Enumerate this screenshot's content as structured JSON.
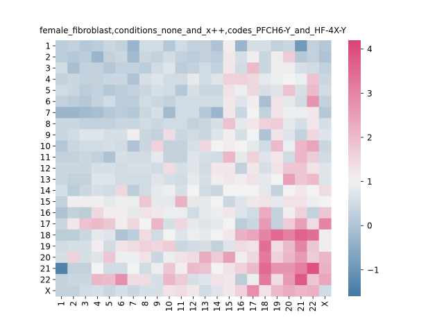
{
  "chart_data": {
    "type": "heatmap",
    "title": "female_fibroblast,conditions_none_and_x++,codes_PFCH6-Y_and_HF-4X-Y",
    "xlabel": "",
    "ylabel": "",
    "x_labels": [
      "1",
      "2",
      "3",
      "4",
      "5",
      "6",
      "7",
      "8",
      "9",
      "10",
      "11",
      "12",
      "13",
      "14",
      "15",
      "16",
      "17",
      "18",
      "19",
      "20",
      "21",
      "22",
      "X"
    ],
    "y_labels": [
      "1",
      "2",
      "3",
      "4",
      "5",
      "6",
      "7",
      "8",
      "9",
      "10",
      "11",
      "12",
      "13",
      "14",
      "15",
      "16",
      "17",
      "18",
      "19",
      "20",
      "21",
      "22",
      "X"
    ],
    "colorbar": {
      "min": -1.6,
      "max": 4.2,
      "ticks": [
        -1,
        0,
        1,
        2,
        3,
        4
      ],
      "colormap": "diverging blue-white-pink",
      "low_color": "#4379a5",
      "mid_color": "#f2f2f2",
      "high_color": "#dc4278"
    },
    "values": [
      [
        0.2,
        0.3,
        0.1,
        0.2,
        0.4,
        0.3,
        -0.3,
        0.5,
        0.5,
        0.1,
        0.5,
        0.3,
        0.3,
        0.0,
        1.1,
        -0.3,
        0.6,
        0.6,
        0.3,
        0.4,
        -0.9,
        0.3,
        0.1
      ],
      [
        0.2,
        0.1,
        0.2,
        -0.3,
        0.3,
        0.4,
        -0.2,
        0.4,
        0.3,
        0.5,
        0.3,
        0.2,
        0.3,
        0.2,
        1.2,
        0.6,
        1.1,
        0.4,
        0.9,
        1.7,
        0.1,
        0.3,
        0.0
      ],
      [
        0.5,
        -0.1,
        0.3,
        0.3,
        0.1,
        0.3,
        0.3,
        0.2,
        0.5,
        0.7,
        0.2,
        0.3,
        0.5,
        0.3,
        1.2,
        0.5,
        2.0,
        0.4,
        1.1,
        0.9,
        0.6,
        0.5,
        0.3
      ],
      [
        0.3,
        0.4,
        0.3,
        0.3,
        0.4,
        0.4,
        0.0,
        0.6,
        0.7,
        0.5,
        0.5,
        0.8,
        0.5,
        0.7,
        1.6,
        1.6,
        1.5,
        0.8,
        0.9,
        1.0,
        0.9,
        1.9,
        0.4
      ],
      [
        0.5,
        0.4,
        0.2,
        0.3,
        0.1,
        0.2,
        0.3,
        0.4,
        0.6,
        0.5,
        0.1,
        0.6,
        0.4,
        0.4,
        1.3,
        0.9,
        1.5,
        0.6,
        0.7,
        1.9,
        0.6,
        2.0,
        0.5
      ],
      [
        0.3,
        0.2,
        0.1,
        0.3,
        0.5,
        0.2,
        0.2,
        0.5,
        0.4,
        0.3,
        0.5,
        0.5,
        0.5,
        0.5,
        1.2,
        0.7,
        1.1,
        -0.1,
        1.3,
        0.8,
        0.5,
        2.7,
        0.3
      ],
      [
        -0.3,
        -0.3,
        -0.2,
        -0.1,
        0.1,
        0.2,
        0.1,
        0.4,
        0.6,
        -0.2,
        0.5,
        0.5,
        0.1,
        -0.3,
        1.2,
        0.4,
        1.0,
        0.3,
        1.3,
        0.9,
        0.9,
        1.2,
        0.1
      ],
      [
        0.4,
        0.4,
        0.3,
        0.3,
        0.3,
        0.4,
        0.4,
        0.5,
        0.4,
        0.5,
        0.5,
        0.3,
        0.4,
        0.6,
        1.9,
        0.8,
        1.2,
        1.6,
        1.7,
        0.8,
        0.6,
        1.2,
        0.6
      ],
      [
        0.4,
        0.5,
        0.7,
        0.7,
        0.6,
        0.6,
        1.1,
        0.4,
        0.3,
        1.4,
        0.4,
        0.5,
        0.4,
        0.7,
        1.1,
        0.6,
        1.0,
        0.0,
        1.3,
        0.7,
        0.3,
        1.5,
        0.7
      ],
      [
        0.1,
        0.4,
        0.5,
        0.5,
        0.6,
        0.5,
        0.0,
        0.4,
        1.6,
        0.3,
        0.3,
        0.6,
        1.5,
        1.0,
        1.1,
        1.0,
        0.8,
        0.5,
        2.0,
        0.9,
        2.1,
        2.4,
        0.4
      ],
      [
        0.3,
        0.3,
        0.4,
        0.3,
        0.0,
        0.6,
        0.5,
        0.5,
        0.8,
        0.3,
        0.3,
        0.7,
        0.6,
        0.5,
        2.1,
        0.8,
        1.6,
        0.7,
        1.2,
        0.5,
        2.1,
        1.7,
        0.5
      ],
      [
        0.4,
        0.4,
        0.4,
        0.6,
        0.6,
        0.5,
        0.6,
        0.6,
        0.5,
        1.4,
        0.6,
        0.7,
        0.5,
        1.2,
        1.2,
        0.3,
        1.2,
        0.6,
        1.3,
        1.8,
        1.8,
        1.3,
        0.7
      ],
      [
        0.4,
        0.3,
        0.3,
        0.7,
        0.7,
        0.5,
        0.5,
        0.5,
        0.7,
        0.6,
        0.5,
        0.8,
        0.6,
        1.1,
        1.2,
        1.1,
        1.3,
        0.8,
        1.0,
        2.5,
        1.8,
        2.0,
        0.7
      ],
      [
        0.6,
        0.2,
        0.4,
        0.6,
        0.5,
        1.5,
        0.2,
        0.5,
        0.8,
        0.9,
        0.6,
        1.0,
        0.5,
        0.4,
        1.0,
        1.0,
        1.0,
        0.8,
        0.3,
        1.0,
        1.2,
        1.0,
        1.4
      ],
      [
        0.3,
        1.1,
        1.1,
        1.1,
        0.8,
        0.9,
        0.9,
        1.8,
        0.8,
        0.8,
        2.2,
        0.8,
        0.8,
        1.0,
        0.4,
        0.7,
        1.2,
        1.3,
        0.8,
        1.3,
        1.3,
        0.9,
        1.0
      ],
      [
        0.0,
        0.3,
        0.2,
        1.5,
        1.1,
        1.1,
        0.8,
        1.3,
        1.2,
        0.9,
        0.9,
        0.5,
        0.8,
        0.9,
        1.2,
        0.7,
        0.5,
        2.3,
        0.3,
        1.1,
        1.6,
        0.3,
        1.8
      ],
      [
        0.4,
        1.2,
        1.9,
        2.0,
        1.8,
        1.1,
        1.5,
        1.0,
        2.1,
        0.6,
        1.5,
        0.8,
        0.7,
        0.8,
        1.0,
        0.2,
        0.4,
        2.6,
        0.3,
        1.7,
        2.5,
        1.4,
        3.0
      ],
      [
        0.2,
        0.2,
        0.4,
        0.8,
        0.7,
        0.0,
        0.2,
        1.4,
        0.5,
        1.0,
        0.7,
        0.9,
        0.8,
        1.0,
        1.2,
        2.2,
        2.4,
        3.0,
        3.5,
        3.1,
        3.6,
        3.4,
        1.1
      ],
      [
        0.5,
        0.6,
        0.6,
        1.1,
        0.5,
        1.3,
        1.4,
        1.6,
        1.5,
        1.7,
        0.4,
        0.5,
        0.6,
        0.3,
        0.7,
        1.4,
        1.3,
        3.4,
        1.4,
        2.0,
        3.0,
        1.8,
        1.1
      ],
      [
        0.6,
        1.6,
        0.6,
        0.7,
        1.8,
        0.9,
        0.9,
        1.3,
        0.4,
        0.9,
        1.3,
        1.4,
        2.3,
        1.7,
        2.5,
        1.1,
        1.5,
        3.2,
        1.6,
        2.1,
        2.6,
        1.7,
        2.1
      ],
      [
        -1.4,
        0.3,
        0.3,
        1.0,
        0.5,
        0.5,
        1.0,
        0.5,
        0.9,
        1.8,
        1.1,
        2.0,
        1.9,
        1.0,
        1.3,
        1.6,
        2.0,
        3.5,
        2.7,
        2.7,
        3.1,
        3.9,
        2.2
      ],
      [
        0.3,
        0.4,
        0.4,
        2.1,
        2.0,
        2.8,
        1.4,
        1.4,
        0.6,
        2.1,
        1.7,
        0.6,
        0.7,
        1.3,
        1.2,
        0.2,
        0.9,
        3.2,
        1.4,
        2.6,
        3.8,
        1.8,
        2.4
      ],
      [
        0.3,
        0.3,
        0.5,
        0.6,
        0.4,
        0.6,
        0.4,
        0.6,
        0.6,
        1.3,
        1.4,
        1.2,
        0.5,
        0.7,
        1.2,
        1.6,
        2.8,
        1.3,
        2.0,
        2.3,
        2.1,
        2.2,
        0.5
      ]
    ]
  }
}
